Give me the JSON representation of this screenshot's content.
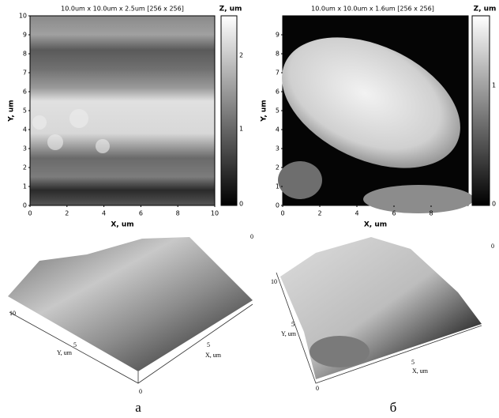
{
  "panels": [
    {
      "image": {
        "title": "10.0um x 10.0um x 2.5um [256 x 256]",
        "z_label": "Z, um",
        "z_ticks": [
          "2",
          "1",
          "0"
        ],
        "y_label": "Y, um",
        "y_ticks": [
          "0",
          "1",
          "2",
          "3",
          "4",
          "5",
          "6",
          "7",
          "8",
          "9",
          "10"
        ],
        "x_label": "X, um",
        "x_ticks": [
          "0",
          "2",
          "4",
          "6",
          "8",
          "10"
        ]
      },
      "view3d": {
        "z_tick": "0",
        "y_ticks": [
          "10",
          "5"
        ],
        "y_label": "Y, um",
        "x_ticks": [
          "5"
        ],
        "x_label": "X, um",
        "origin": "0"
      },
      "caption": "а"
    },
    {
      "image": {
        "title": "10.0um x 10.0um x 1.6um [256 x 256]",
        "z_label": "Z, um",
        "z_ticks": [
          "1",
          "0"
        ],
        "y_label": "Y, um",
        "y_ticks": [
          "0",
          "1",
          "2",
          "3",
          "4",
          "5",
          "6",
          "7",
          "8",
          "9"
        ],
        "x_label": "X, um",
        "x_ticks": [
          "0",
          "2",
          "4",
          "6",
          "8"
        ]
      },
      "view3d": {
        "z_tick": "0",
        "y_ticks": [
          "10",
          "5"
        ],
        "y_label": "Y, um",
        "x_ticks": [
          "5"
        ],
        "x_label": "X, um",
        "origin": "0"
      },
      "caption": "б"
    }
  ]
}
